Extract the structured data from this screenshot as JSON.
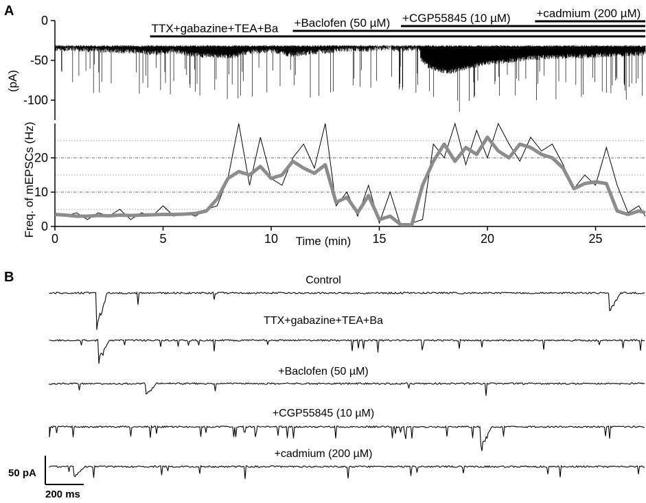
{
  "figure": {
    "panel_a": "A",
    "panel_b": "B"
  },
  "chart_data": [
    {
      "type": "line",
      "description_panel": "A-top",
      "title": "",
      "xlabel": "",
      "ylabel": "(pA)",
      "ylim": [
        -125,
        0
      ],
      "yticks": [
        0,
        -50,
        -100
      ],
      "ytick_labels": [
        "0",
        "-50",
        "-100"
      ],
      "xlim": [
        0,
        27.3
      ],
      "series": [
        {
          "values": [
            -33,
            -33,
            -34,
            -35,
            -36,
            -38,
            -35,
            -40,
            -41,
            -42,
            -36,
            -35,
            -40,
            -37,
            -35,
            -33,
            -33,
            -31,
            -31,
            -55,
            -62,
            -55,
            -50,
            -48,
            -44,
            -43,
            -42,
            -42,
            -40,
            -40,
            -38
          ]
        }
      ],
      "drug_bars": [
        {
          "label": "TTX+gabazine+TEA+Ba",
          "start": 4.4,
          "end": 27.3
        },
        {
          "label": "+Baclofen (50 µM)",
          "start": 11.0,
          "end": 27.3
        },
        {
          "label": "+CGP55845 (10 µM)",
          "start": 16.0,
          "end": 27.3
        },
        {
          "label": "+cadmium (200 µM)",
          "start": 22.2,
          "end": 27.3
        }
      ]
    },
    {
      "type": "line",
      "description_panel": "A-bottom",
      "title": "",
      "xlabel": "Time (min)",
      "ylabel": "Freq. of mEPSCs (Hz)",
      "xlim": [
        0,
        27.3
      ],
      "ylim": [
        0,
        30
      ],
      "xticks": [
        0,
        5,
        10,
        15,
        20,
        25
      ],
      "xtick_labels": [
        "0",
        "5",
        "10",
        "15",
        "20",
        "25"
      ],
      "yticks": [
        0,
        10,
        20
      ],
      "ytick_labels": [
        "0",
        "10",
        "20"
      ],
      "grid": "horizontal dotted at 5,10,15,20,25",
      "x": [
        0,
        0.5,
        1,
        1.5,
        2,
        2.5,
        3,
        3.5,
        4,
        4.5,
        5,
        5.5,
        6,
        6.5,
        7,
        7.5,
        8,
        8.5,
        9,
        9.5,
        10,
        10.5,
        11,
        11.5,
        12,
        12.5,
        13,
        13.5,
        14,
        14.5,
        15,
        15.5,
        16,
        16.5,
        17,
        17.5,
        18,
        18.5,
        19,
        19.5,
        20,
        20.5,
        21,
        21.5,
        22,
        22.5,
        23,
        23.5,
        24,
        24.5,
        25,
        25.5,
        26,
        26.5,
        27,
        27.3
      ],
      "series": [
        {
          "name": "",
          "values": [
            4,
            3,
            4,
            2,
            4,
            3,
            5,
            2,
            4,
            3,
            6,
            3,
            4,
            3,
            5,
            6,
            14,
            30,
            12,
            26,
            14,
            12,
            20,
            24,
            17,
            30,
            6,
            10,
            3,
            12,
            1,
            10,
            0,
            1,
            2,
            24,
            20,
            30,
            18,
            28,
            20,
            30,
            24,
            19,
            26,
            22,
            24,
            18,
            11,
            15,
            12,
            23,
            12,
            4,
            6,
            3
          ]
        },
        {
          "name": "",
          "values": [
            3.5,
            3.3,
            3.0,
            3.0,
            3.2,
            3.1,
            3.3,
            3.2,
            3.3,
            3.4,
            3.5,
            3.5,
            3.6,
            3.8,
            4.5,
            8,
            14,
            16,
            15,
            17.5,
            14,
            15,
            19,
            17,
            15.5,
            18,
            7,
            8.5,
            4,
            9,
            2,
            3,
            0.5,
            0.5,
            12,
            19,
            24,
            19,
            23,
            21,
            26,
            22,
            20,
            24,
            23,
            21,
            20,
            17,
            11,
            12.5,
            13,
            12.5,
            4.5,
            3.5,
            4.5,
            4
          ]
        }
      ]
    },
    {
      "type": "line",
      "description_panel": "B",
      "title": "",
      "traces": [
        {
          "label": "Control"
        },
        {
          "label": "TTX+gabazine+TEA+Ba"
        },
        {
          "label": "+Baclofen (50 µM)"
        },
        {
          "label": "+CGP55845 (10 µM)"
        },
        {
          "label": "+cadmium (200 µM)"
        }
      ],
      "scale_bar": {
        "amplitude_label": "50 pA",
        "time_label": "200 ms"
      }
    }
  ]
}
